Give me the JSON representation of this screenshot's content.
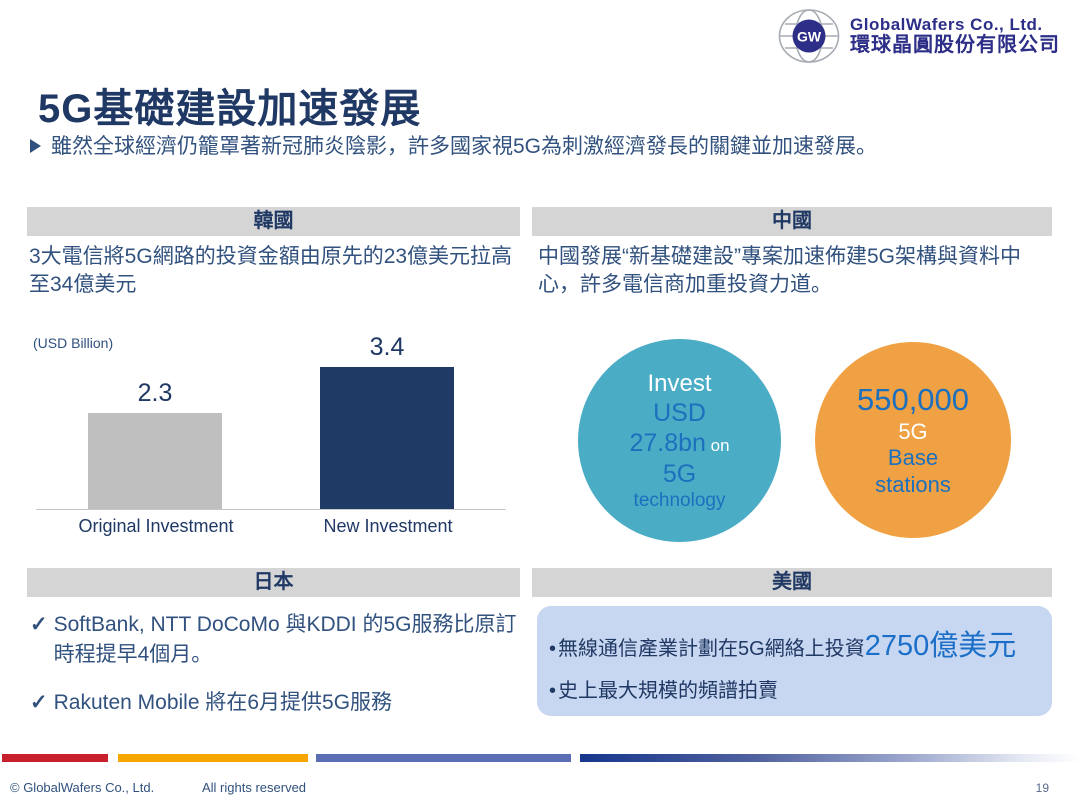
{
  "brand": {
    "logo_initials": "GW",
    "company_en": "GlobalWafers Co., Ltd.",
    "company_zh": "環球晶圓股份有限公司"
  },
  "slide": {
    "title": "5G基礎建設加速發展",
    "intro": "雖然全球經濟仍籠罩著新冠肺炎陰影，許多國家視5G為刺激經濟發長的關鍵並加速發展。"
  },
  "sections": {
    "korea": {
      "header": "韓國",
      "body": "3大電信將5G網路的投資金額由原先的23億美元拉高至34億美元"
    },
    "china": {
      "header": "中國",
      "body": "中國發展“新基礎建設”專案加速佈建5G架構與資料中心，許多電信商加重投資力道。",
      "invest_circle": {
        "color": "#4BACC6",
        "line1": "Invest",
        "line2": "USD",
        "line3_value": "27.8bn",
        "line3_suffix": " on",
        "line4": "5G",
        "line5": "technology"
      },
      "stations_circle": {
        "color": "#F0A143",
        "line1": "550,000",
        "line2": "5G",
        "line3": "Base",
        "line4": "stations"
      }
    },
    "japan": {
      "header": "日本",
      "items": [
        {
          "marker": "✓",
          "text": "SoftBank, NTT DoCoMo 與KDDI 的5G服務比原訂時程提早4個月。"
        },
        {
          "marker": "✓",
          "text": "Rakuten Mobile 將在6月提供5G服務"
        }
      ]
    },
    "usa": {
      "header": "美國",
      "items": [
        {
          "marker": "•",
          "text": "無線通信產業計劃在5G網絡上投資",
          "highlight": "2750億美元"
        },
        {
          "marker": "•",
          "text": "史上最大規模的頻譜拍賣",
          "highlight": ""
        }
      ]
    }
  },
  "chart_data": {
    "type": "bar",
    "title": "",
    "unit_label": "(USD Billion)",
    "categories": [
      "Original Investment",
      "New Investment"
    ],
    "values": [
      2.3,
      3.4
    ],
    "value_labels": [
      "2.3",
      "3.4"
    ],
    "bar_colors": [
      "#BFBFBF",
      "#203A66"
    ],
    "ylim": [
      0,
      3.4
    ],
    "grid": false,
    "legend": false
  },
  "footer": {
    "copyright": "© GlobalWafers Co., Ltd.",
    "rights": "All rights reserved",
    "page_number": "19"
  },
  "colors": {
    "title_navy": "#1F3864",
    "body_navy": "#31517E",
    "header_bar_gray": "#D5D5D5",
    "logo_navy": "#2D2E87",
    "circle_teal": "#4BACC6",
    "circle_orange": "#F0A143",
    "circle_text_blue": "#1C70BE",
    "usa_box_bg": "#C7D7F1",
    "usa_highlight_blue": "#1B6FC8",
    "stripe_red": "#C9202E",
    "stripe_orange": "#F7A600",
    "stripe_slate": "#5B6EB4",
    "stripe_navy": "#16368C"
  }
}
